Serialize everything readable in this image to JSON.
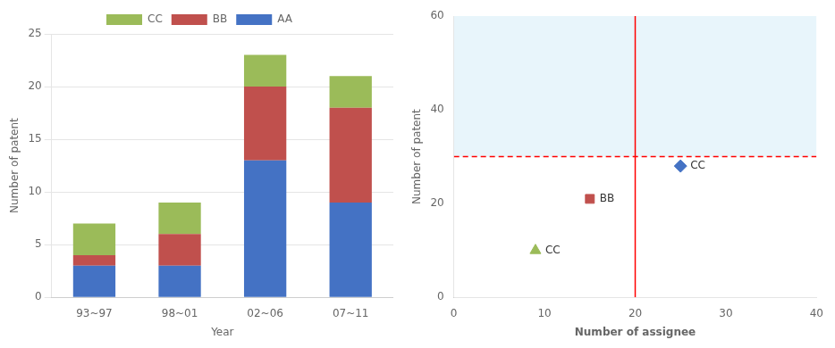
{
  "chart_data": [
    {
      "type": "bar",
      "stacked": true,
      "categories": [
        "93~97",
        "98~01",
        "02~06",
        "07~11"
      ],
      "series": [
        {
          "name": "AA",
          "color": "#4472C4",
          "values": [
            3,
            3,
            13,
            9
          ]
        },
        {
          "name": "BB",
          "color": "#C0504D",
          "values": [
            1,
            3,
            7,
            9
          ]
        },
        {
          "name": "CC",
          "color": "#9BBB59",
          "values": [
            3,
            3,
            3,
            3
          ]
        }
      ],
      "xlabel": "Year",
      "ylabel": "Number of patent",
      "ylim": [
        0,
        25
      ],
      "yticks": [
        0,
        5,
        10,
        15,
        20,
        25
      ],
      "grid": true,
      "legend": "top"
    },
    {
      "type": "scatter",
      "series": [
        {
          "name": "CC",
          "color": "#9BBB59",
          "marker": "triangle",
          "x": [
            9
          ],
          "values": [
            10
          ]
        },
        {
          "name": "BB",
          "color": "#C0504D",
          "marker": "square",
          "x": [
            15
          ],
          "values": [
            21
          ]
        },
        {
          "name": "CC",
          "color": "#4472C4",
          "marker": "diamond",
          "x": [
            25
          ],
          "values": [
            28
          ]
        }
      ],
      "xlabel": "Number of assignee",
      "ylabel": "Number of patent",
      "xlim": [
        0,
        40
      ],
      "ylim": [
        0,
        60
      ],
      "xticks": [
        0,
        10,
        20,
        30,
        40
      ],
      "yticks": [
        0,
        20,
        40,
        60
      ],
      "grid": false,
      "reference_lines": [
        {
          "axis": "x",
          "value": 20,
          "color": "red",
          "line_style": "solid"
        },
        {
          "axis": "y",
          "value": 30,
          "color": "red",
          "line_style": "dashed"
        }
      ],
      "shade": {
        "y_from": 30,
        "y_to": 60,
        "color": "#D8EEF8"
      }
    }
  ]
}
